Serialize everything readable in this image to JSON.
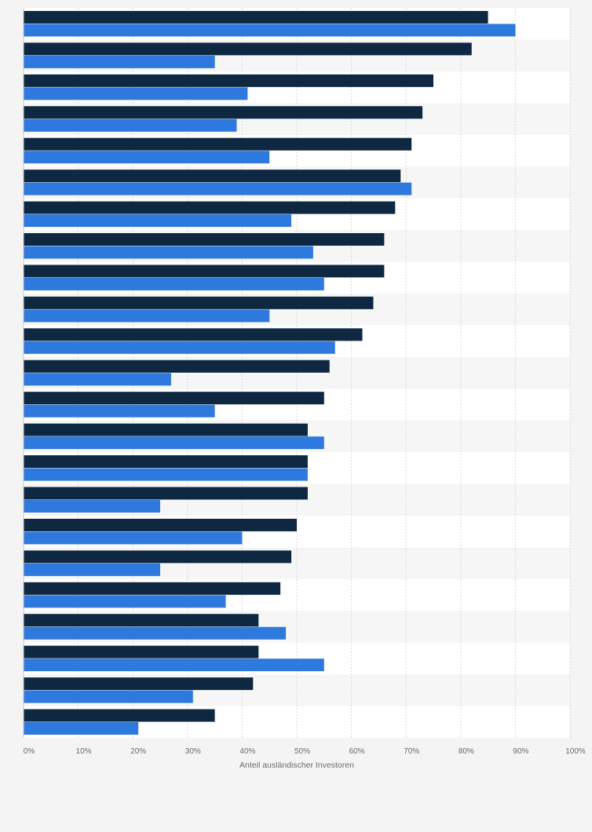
{
  "chart_data": {
    "type": "bar",
    "orientation": "horizontal",
    "title": "",
    "xlabel": "Anteil ausländischer Investoren",
    "ylabel": "",
    "xlim": [
      0,
      100
    ],
    "x_ticks": [
      "0%",
      "10%",
      "20%",
      "30%",
      "40%",
      "50%",
      "60%",
      "70%",
      "80%",
      "90%",
      "100%"
    ],
    "grid": true,
    "legend": "none",
    "categories": [
      "",
      "",
      "",
      "",
      "",
      "",
      "",
      "",
      "",
      "",
      "",
      "",
      "",
      "",
      "",
      "",
      "",
      "",
      "",
      "",
      "",
      "",
      ""
    ],
    "series": [
      {
        "color": "#0f2842",
        "values": [
          85,
          82,
          75,
          73,
          71,
          69,
          68,
          66,
          66,
          64,
          62,
          56,
          55,
          52,
          52,
          52,
          50,
          49,
          47,
          43,
          43,
          42,
          35
        ]
      },
      {
        "color": "#2e79de",
        "values": [
          90,
          35,
          41,
          39,
          45,
          71,
          49,
          53,
          55,
          45,
          57,
          27,
          35,
          55,
          52,
          25,
          40,
          25,
          37,
          48,
          55,
          31,
          21
        ]
      }
    ]
  }
}
